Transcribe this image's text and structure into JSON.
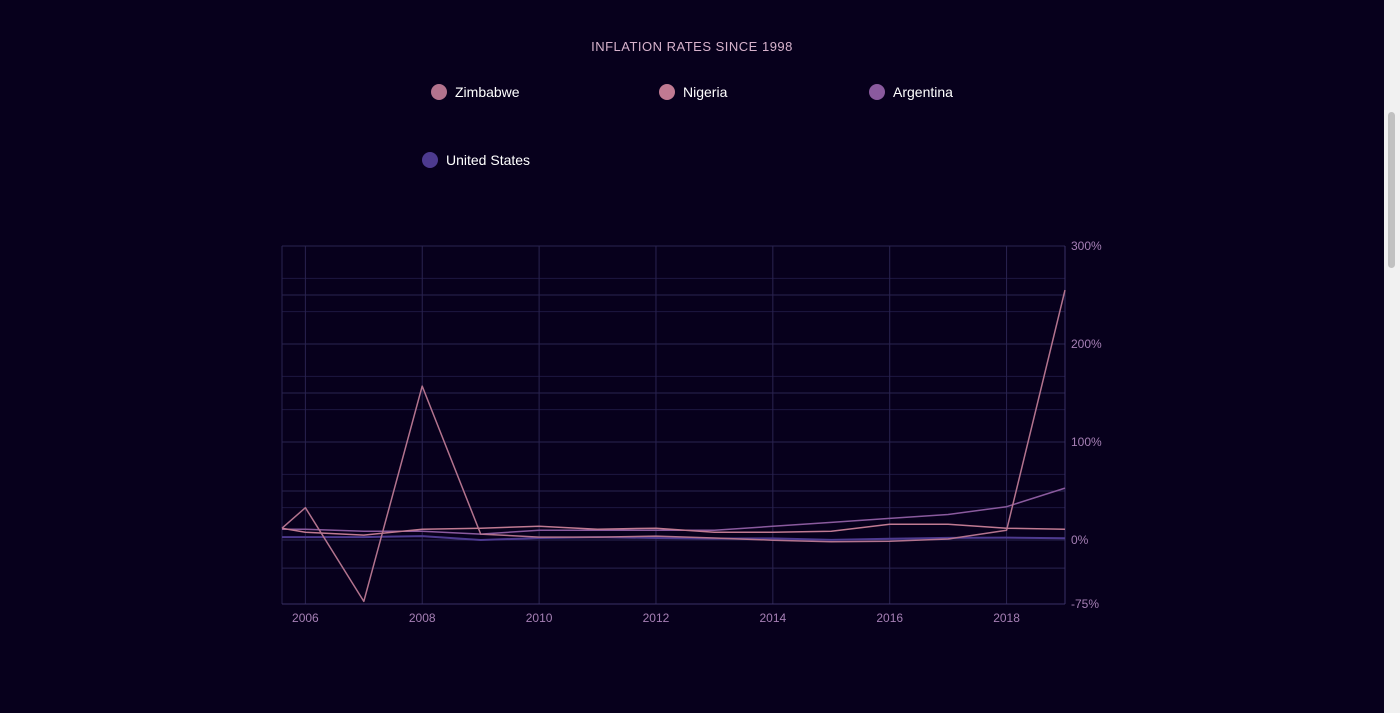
{
  "chart_data": {
    "type": "line",
    "title": "INFLATION RATES SINCE 1998",
    "x": [
      2005.6,
      2006,
      2007,
      2008,
      2009,
      2010,
      2011,
      2012,
      2013,
      2014,
      2015,
      2016,
      2017,
      2018,
      2019
    ],
    "x_ticks": [
      "2006",
      "2008",
      "2010",
      "2012",
      "2014",
      "2016",
      "2018"
    ],
    "y_ticks": [
      "300%",
      "200%",
      "100%",
      "0%",
      "-75%"
    ],
    "ylim": [
      -75,
      300
    ],
    "grid": true,
    "legend_position": "top",
    "series": [
      {
        "name": "Zimbabwe",
        "color": "#b3738e",
        "values": [
          12,
          33,
          -72,
          157,
          6,
          3,
          3,
          4,
          2,
          -0.2,
          -2,
          -1.5,
          1,
          10,
          255
        ]
      },
      {
        "name": "Nigeria",
        "color": "#c07a92",
        "values": [
          12,
          8,
          5,
          11,
          12,
          14,
          11,
          12,
          8,
          8,
          9,
          16,
          16,
          12,
          11
        ]
      },
      {
        "name": "Argentina",
        "color": "#8a5a9e",
        "values": [
          11,
          11,
          9,
          9,
          6,
          10,
          10,
          10,
          10,
          14,
          18,
          22,
          26,
          34,
          53
        ]
      },
      {
        "name": "United States",
        "color": "#4d3a8f",
        "values": [
          3,
          3,
          3,
          4,
          0,
          2,
          3,
          2,
          1.5,
          1.6,
          0.1,
          1.3,
          2.1,
          2.4,
          1.8
        ]
      }
    ]
  }
}
